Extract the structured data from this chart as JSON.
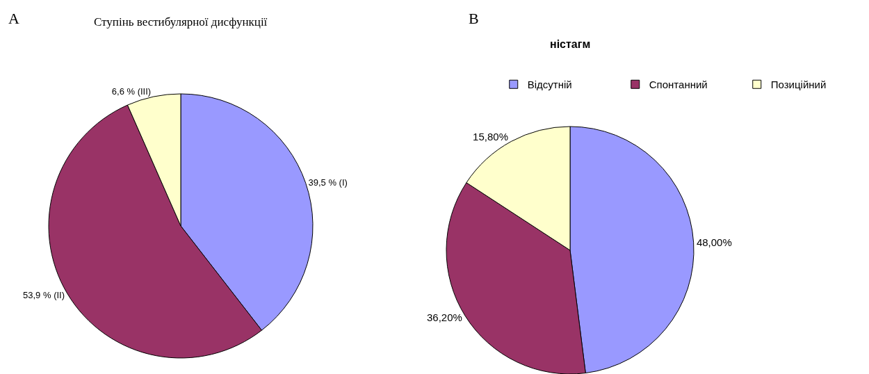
{
  "chart_data": [
    {
      "type": "pie",
      "title": "Ступінь вестибулярної дисфункції",
      "annotations": [
        "A"
      ],
      "categories": [
        null,
        null,
        null
      ],
      "values": [
        39.5,
        53.9,
        6.6
      ],
      "colors": [
        "#9999ff",
        "#993366",
        "#ffffcc"
      ],
      "value_labels": [
        "39,5 % (I)",
        "53,9 % (II)",
        "6,6 % (III)"
      ],
      "legend": false
    },
    {
      "type": "pie",
      "title": "ністагм",
      "annotations": [
        "B"
      ],
      "categories": [
        "Відсутній",
        "Спонтанний",
        "Позиційний"
      ],
      "values": [
        48.0,
        36.2,
        15.8
      ],
      "colors": [
        "#9999ff",
        "#993366",
        "#ffffcc"
      ],
      "value_labels": [
        "48,00%",
        "36,20%",
        "15,80%"
      ],
      "legend": "top right"
    }
  ]
}
